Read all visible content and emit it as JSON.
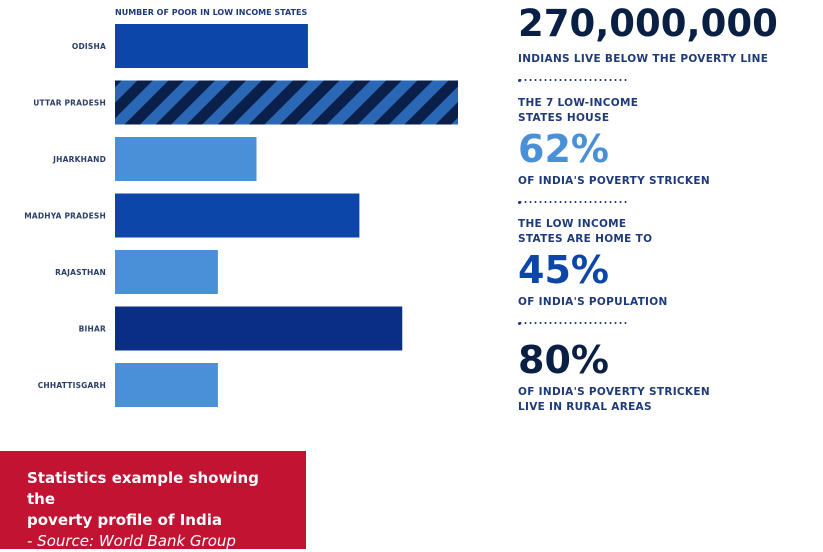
{
  "chart_data": {
    "type": "bar",
    "orientation": "horizontal",
    "title": "NUMBER OF POOR IN LOW INCOME STATES",
    "categories": [
      "ODISHA",
      "UTTAR PRADESH",
      "JHARKHAND",
      "MADHYA PRADESH",
      "RAJASTHAN",
      "BIHAR",
      "CHHATTISGARH"
    ],
    "values": [
      4.5,
      8.0,
      3.3,
      5.7,
      2.4,
      6.7,
      2.4
    ],
    "bar_styles": [
      "medium",
      "striped",
      "light",
      "medium",
      "light",
      "dark",
      "light"
    ],
    "xlim": [
      0,
      8
    ],
    "grid": false,
    "legend": "none",
    "colors": {
      "light": "#4a90d9",
      "medium": "#0b46a8",
      "dark": "#0a2d85",
      "stripe_dark": "#0a1f4a",
      "stripe_light": "#2a67b5"
    }
  },
  "stats": [
    {
      "value": "270,000,000",
      "pre": "",
      "post": "INDIANS LIVE BELOW THE POVERTY LINE",
      "color": "#0a1f44"
    },
    {
      "value": "62%",
      "pre": "THE 7 LOW-INCOME|STATES HOUSE",
      "post": "OF INDIA'S POVERTY STRICKEN",
      "color": "#4a90d9"
    },
    {
      "value": "45%",
      "pre": "THE LOW INCOME|STATES ARE HOME TO",
      "post": "OF INDIA'S POPULATION",
      "color": "#0b46a8"
    },
    {
      "value": "80%",
      "pre": "",
      "post": "OF INDIA'S POVERTY STRICKEN|LIVE IN RURAL AREAS",
      "color": "#0a1f44"
    }
  ],
  "caption": {
    "line1": "Statistics example showing the",
    "line2": "poverty profile of India",
    "source": "- Source: World Bank Group"
  }
}
